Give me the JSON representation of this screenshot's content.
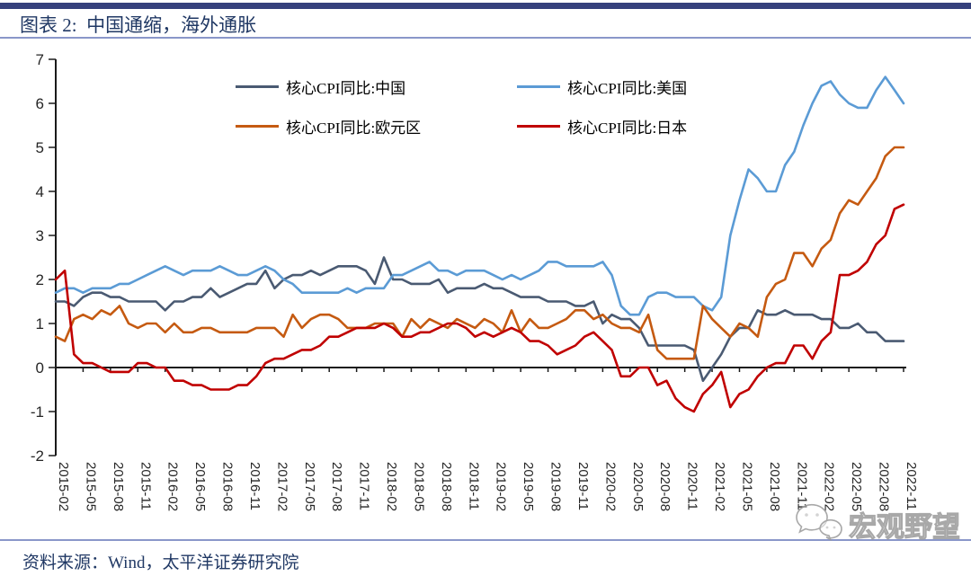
{
  "header": {
    "title": "图表 2:  中国通缩，海外通胀"
  },
  "footer": {
    "source": "资料来源：Wind，太平洋证券研究院"
  },
  "watermark": {
    "text": "宏观野望"
  },
  "chart_data": {
    "type": "line",
    "title": "中国通缩，海外通胀",
    "grid": false,
    "legend_position": "top-inside",
    "ylim": [
      -2,
      7
    ],
    "y_ticks": [
      7,
      6,
      5,
      4,
      3,
      2,
      1,
      0,
      -1,
      -2
    ],
    "x_tick_step": 3,
    "x": [
      "2015-02",
      "2015-03",
      "2015-04",
      "2015-05",
      "2015-06",
      "2015-07",
      "2015-08",
      "2015-09",
      "2015-10",
      "2015-11",
      "2015-12",
      "2016-01",
      "2016-02",
      "2016-03",
      "2016-04",
      "2016-05",
      "2016-06",
      "2016-07",
      "2016-08",
      "2016-09",
      "2016-10",
      "2016-11",
      "2016-12",
      "2017-01",
      "2017-02",
      "2017-03",
      "2017-04",
      "2017-05",
      "2017-06",
      "2017-07",
      "2017-08",
      "2017-09",
      "2017-10",
      "2017-11",
      "2017-12",
      "2018-01",
      "2018-02",
      "2018-03",
      "2018-04",
      "2018-05",
      "2018-06",
      "2018-07",
      "2018-08",
      "2018-09",
      "2018-10",
      "2018-11",
      "2018-12",
      "2019-01",
      "2019-02",
      "2019-03",
      "2019-04",
      "2019-05",
      "2019-06",
      "2019-07",
      "2019-08",
      "2019-09",
      "2019-10",
      "2019-11",
      "2019-12",
      "2020-01",
      "2020-02",
      "2020-03",
      "2020-04",
      "2020-05",
      "2020-06",
      "2020-07",
      "2020-08",
      "2020-09",
      "2020-10",
      "2020-11",
      "2020-12",
      "2021-01",
      "2021-02",
      "2021-03",
      "2021-04",
      "2021-05",
      "2021-06",
      "2021-07",
      "2021-08",
      "2021-09",
      "2021-10",
      "2021-11",
      "2021-12",
      "2022-01",
      "2022-02",
      "2022-03",
      "2022-04",
      "2022-05",
      "2022-06",
      "2022-07",
      "2022-08",
      "2022-09",
      "2022-10",
      "2022-11"
    ],
    "series": [
      {
        "id": "china",
        "name": "核心CPI同比:中国",
        "color": "#4A5A72",
        "values": [
          1.5,
          1.5,
          1.4,
          1.6,
          1.7,
          1.7,
          1.6,
          1.6,
          1.5,
          1.5,
          1.5,
          1.5,
          1.3,
          1.5,
          1.5,
          1.6,
          1.6,
          1.8,
          1.6,
          1.7,
          1.8,
          1.9,
          1.9,
          2.2,
          1.8,
          2.0,
          2.1,
          2.1,
          2.2,
          2.1,
          2.2,
          2.3,
          2.3,
          2.3,
          2.2,
          1.9,
          2.5,
          2.0,
          2.0,
          1.9,
          1.9,
          1.9,
          2.0,
          1.7,
          1.8,
          1.8,
          1.8,
          1.9,
          1.8,
          1.8,
          1.7,
          1.6,
          1.6,
          1.6,
          1.5,
          1.5,
          1.5,
          1.4,
          1.4,
          1.5,
          1.0,
          1.2,
          1.1,
          1.1,
          0.9,
          0.5,
          0.5,
          0.5,
          0.5,
          0.5,
          0.4,
          -0.3,
          0.0,
          0.3,
          0.7,
          0.9,
          0.9,
          1.3,
          1.2,
          1.2,
          1.3,
          1.2,
          1.2,
          1.2,
          1.1,
          1.1,
          0.9,
          0.9,
          1.0,
          0.8,
          0.8,
          0.6,
          0.6,
          0.6
        ]
      },
      {
        "id": "us",
        "name": "核心CPI同比:美国",
        "color": "#5B9BD5",
        "values": [
          1.7,
          1.8,
          1.8,
          1.7,
          1.8,
          1.8,
          1.8,
          1.9,
          1.9,
          2.0,
          2.1,
          2.2,
          2.3,
          2.2,
          2.1,
          2.2,
          2.2,
          2.2,
          2.3,
          2.2,
          2.1,
          2.1,
          2.2,
          2.3,
          2.2,
          2.0,
          1.9,
          1.7,
          1.7,
          1.7,
          1.7,
          1.7,
          1.8,
          1.7,
          1.8,
          1.8,
          1.8,
          2.1,
          2.1,
          2.2,
          2.3,
          2.4,
          2.2,
          2.2,
          2.1,
          2.2,
          2.2,
          2.2,
          2.1,
          2.0,
          2.1,
          2.0,
          2.1,
          2.2,
          2.4,
          2.4,
          2.3,
          2.3,
          2.3,
          2.3,
          2.4,
          2.1,
          1.4,
          1.2,
          1.2,
          1.6,
          1.7,
          1.7,
          1.6,
          1.6,
          1.6,
          1.4,
          1.3,
          1.6,
          3.0,
          3.8,
          4.5,
          4.3,
          4.0,
          4.0,
          4.6,
          4.9,
          5.5,
          6.0,
          6.4,
          6.5,
          6.2,
          6.0,
          5.9,
          5.9,
          6.3,
          6.6,
          6.3,
          6.0
        ]
      },
      {
        "id": "eurozone",
        "name": "核心CPI同比:欧元区",
        "color": "#C55A11",
        "values": [
          0.7,
          0.6,
          1.1,
          1.2,
          1.1,
          1.3,
          1.2,
          1.4,
          1.0,
          0.9,
          1.0,
          1.0,
          0.8,
          1.0,
          0.8,
          0.8,
          0.9,
          0.9,
          0.8,
          0.8,
          0.8,
          0.8,
          0.9,
          0.9,
          0.9,
          0.7,
          1.2,
          0.9,
          1.1,
          1.2,
          1.2,
          1.1,
          0.9,
          0.9,
          0.9,
          1.0,
          1.0,
          1.0,
          0.7,
          1.1,
          0.9,
          1.1,
          1.0,
          0.9,
          1.1,
          1.0,
          0.9,
          1.1,
          1.0,
          0.8,
          1.3,
          0.8,
          1.1,
          0.9,
          0.9,
          1.0,
          1.1,
          1.3,
          1.3,
          1.1,
          1.2,
          1.0,
          0.9,
          0.9,
          0.8,
          1.2,
          0.4,
          0.2,
          0.2,
          0.2,
          0.2,
          1.4,
          1.1,
          0.9,
          0.7,
          1.0,
          0.9,
          0.7,
          1.6,
          1.9,
          2.0,
          2.6,
          2.6,
          2.3,
          2.7,
          2.9,
          3.5,
          3.8,
          3.7,
          4.0,
          4.3,
          4.8,
          5.0,
          5.0
        ]
      },
      {
        "id": "japan",
        "name": "核心CPI同比:日本",
        "color": "#C00000",
        "values": [
          2.0,
          2.2,
          0.3,
          0.1,
          0.1,
          0.0,
          -0.1,
          -0.1,
          -0.1,
          0.1,
          0.1,
          0.0,
          0.0,
          -0.3,
          -0.3,
          -0.4,
          -0.4,
          -0.5,
          -0.5,
          -0.5,
          -0.4,
          -0.4,
          -0.2,
          0.1,
          0.2,
          0.2,
          0.3,
          0.4,
          0.4,
          0.5,
          0.7,
          0.7,
          0.8,
          0.9,
          0.9,
          0.9,
          1.0,
          0.9,
          0.7,
          0.7,
          0.8,
          0.8,
          0.9,
          1.0,
          1.0,
          0.9,
          0.7,
          0.8,
          0.7,
          0.8,
          0.9,
          0.8,
          0.6,
          0.6,
          0.5,
          0.3,
          0.4,
          0.5,
          0.7,
          0.8,
          0.6,
          0.4,
          -0.2,
          -0.2,
          0.0,
          0.0,
          -0.4,
          -0.3,
          -0.7,
          -0.9,
          -1.0,
          -0.6,
          -0.4,
          -0.1,
          -0.9,
          -0.6,
          -0.5,
          -0.2,
          0.0,
          0.1,
          0.1,
          0.5,
          0.5,
          0.2,
          0.6,
          0.8,
          2.1,
          2.1,
          2.2,
          2.4,
          2.8,
          3.0,
          3.6,
          3.7
        ]
      }
    ]
  }
}
